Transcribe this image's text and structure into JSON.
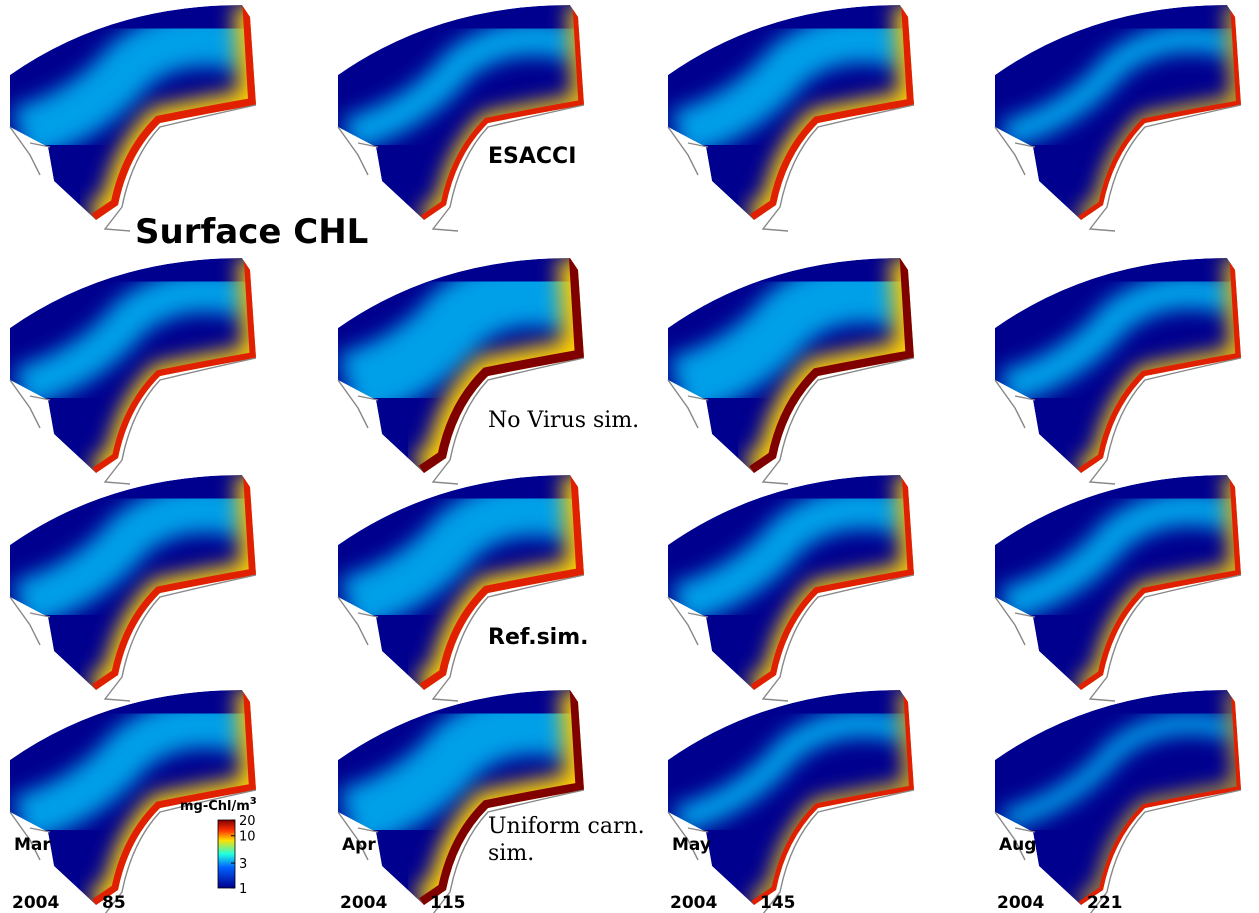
{
  "title": "Surface CHL",
  "rows": [
    {
      "label": "ESACCI"
    },
    {
      "label": "No Virus sim."
    },
    {
      "label": "Ref.sim."
    },
    {
      "label_lines": [
        "Uniform carn.",
        "sim."
      ]
    }
  ],
  "columns": [
    {
      "month": "Mar",
      "year": "2004",
      "day": "85"
    },
    {
      "month": "Apr",
      "year": "2004",
      "day": "115"
    },
    {
      "month": "May",
      "year": "2004",
      "day": "145"
    },
    {
      "month": "Aug",
      "year": "2004",
      "day": "221"
    }
  ],
  "colorbar": {
    "label": "mg-Chl/m",
    "label_sup": "3",
    "ticks": [
      20,
      10,
      3,
      1
    ]
  }
}
